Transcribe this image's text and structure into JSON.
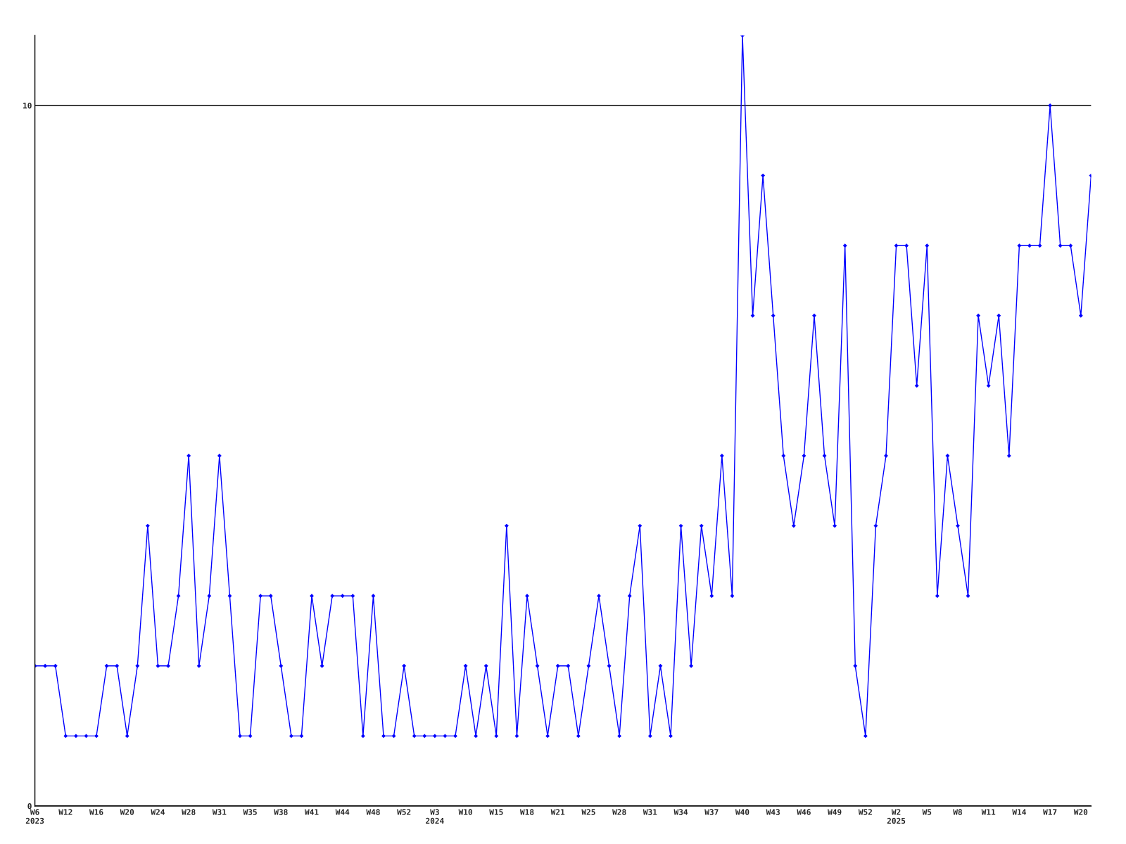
{
  "chart_data": {
    "type": "line",
    "categories": [
      "W6\n2023",
      null,
      null,
      "W12",
      null,
      null,
      "W16",
      null,
      null,
      "W20",
      null,
      null,
      "W24",
      null,
      null,
      "W28",
      null,
      null,
      "W31",
      null,
      null,
      "W35",
      null,
      null,
      "W38",
      null,
      null,
      "W41",
      null,
      null,
      "W44",
      null,
      null,
      "W48",
      null,
      null,
      "W52",
      null,
      null,
      "W3\n2024",
      null,
      null,
      "W10",
      null,
      null,
      "W15",
      null,
      null,
      "W18",
      null,
      null,
      "W21",
      null,
      null,
      "W25",
      null,
      null,
      "W28",
      null,
      null,
      "W31",
      null,
      null,
      "W34",
      null,
      null,
      "W37",
      null,
      null,
      "W40",
      null,
      null,
      "W43",
      null,
      null,
      "W46",
      null,
      null,
      "W49",
      null,
      null,
      "W52",
      null,
      null,
      "W2\n2025",
      null,
      null,
      "W5",
      null,
      null,
      "W8",
      null,
      null,
      "W11",
      null,
      null,
      "W14",
      null,
      null,
      "W17",
      null,
      null,
      "W20",
      null
    ],
    "series": [
      {
        "color": "#0000ff",
        "values": [
          2,
          2,
          2,
          1,
          1,
          1,
          1,
          2,
          2,
          1,
          2,
          4,
          2,
          2,
          3,
          5,
          2,
          3,
          5,
          3,
          1,
          1,
          3,
          3,
          2,
          1,
          1,
          3,
          2,
          3,
          3,
          3,
          1,
          3,
          1,
          1,
          2,
          1,
          1,
          1,
          1,
          1,
          2,
          1,
          2,
          1,
          4,
          1,
          3,
          2,
          1,
          2,
          2,
          1,
          2,
          3,
          2,
          1,
          3,
          4,
          1,
          2,
          1,
          4,
          2,
          4,
          3,
          5,
          3,
          11,
          7,
          9,
          7,
          5,
          4,
          5,
          7,
          5,
          4,
          8,
          2,
          1,
          4,
          5,
          8,
          8,
          6,
          8,
          3,
          5,
          4,
          3,
          7,
          6,
          7,
          5,
          8,
          8,
          8,
          10,
          8,
          8,
          7,
          9
        ]
      }
    ],
    "ylim": [
      0,
      11
    ],
    "yticks": [
      0,
      10
    ],
    "grid": "y",
    "marker": "diamond",
    "line_style": "solid"
  }
}
